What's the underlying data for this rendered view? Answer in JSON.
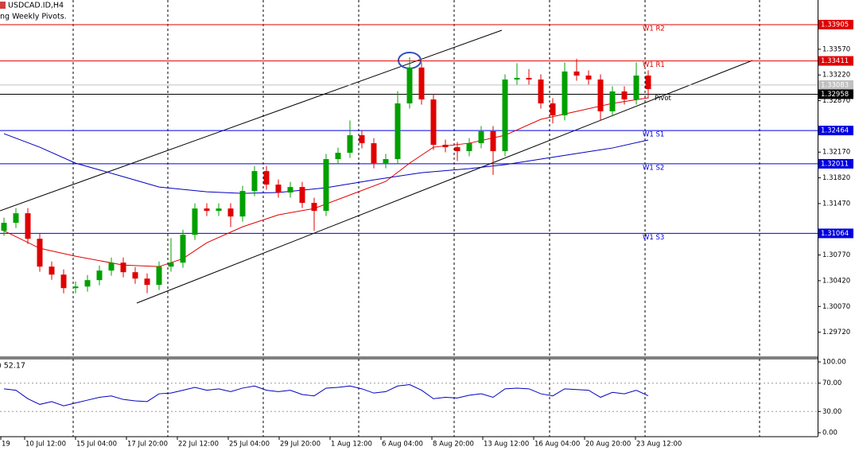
{
  "chart_data": {
    "type": "candlestick",
    "title": "USDCAD.ID,H4",
    "subtitle": "ng Weekly Pivots.",
    "up_color": "#00a000",
    "down_color": "#e00000",
    "x_labels": [
      "19",
      "10 Jul 12:00",
      "15 Jul 04:00",
      "17 Jul 20:00",
      "22 Jul 12:00",
      "25 Jul 04:00",
      "29 Jul 20:00",
      "1 Aug 12:00",
      "6 Aug 04:00",
      "8 Aug 20:00",
      "13 Aug 12:00",
      "16 Aug 04:00",
      "20 Aug 20:00",
      "23 Aug 12:00"
    ],
    "open": [
      1.311,
      1.31208,
      1.31338,
      1.30991,
      1.30612,
      1.30503,
      1.30319,
      1.30341,
      1.30428,
      1.30558,
      1.30666,
      1.30536,
      1.30449,
      1.30363,
      1.30612,
      1.30666,
      1.31045,
      1.31403,
      1.3137,
      1.31403,
      1.31294,
      1.31641,
      1.31912,
      1.31728,
      1.3162,
      1.31695,
      1.31479,
      1.3137,
      1.32075,
      1.32161,
      1.324,
      1.32291,
      1.3202,
      1.32075,
      1.32833,
      1.33321,
      1.32887,
      1.3227,
      1.32237,
      1.32183,
      1.32291,
      1.32454,
      1.32183,
      1.33158,
      1.3318,
      1.33158,
      1.32833,
      1.32671,
      1.33267,
      1.33212,
      1.33158,
      1.32725,
      1.32996,
      1.32887,
      1.33212
    ],
    "high": [
      1.31278,
      1.31408,
      1.31408,
      1.31061,
      1.30682,
      1.30573,
      1.30411,
      1.30498,
      1.30628,
      1.30736,
      1.30736,
      1.30606,
      1.30519,
      1.30682,
      1.31,
      1.31115,
      1.31473,
      1.31473,
      1.31473,
      1.31473,
      1.31711,
      1.31982,
      1.31982,
      1.31798,
      1.31765,
      1.31765,
      1.31549,
      1.32145,
      1.32231,
      1.326,
      1.3247,
      1.32361,
      1.32145,
      1.33,
      1.3346,
      1.33391,
      1.32957,
      1.3234,
      1.32307,
      1.32361,
      1.32524,
      1.32524,
      1.33228,
      1.3338,
      1.333,
      1.33228,
      1.32903,
      1.3339,
      1.3344,
      1.33282,
      1.33228,
      1.33066,
      1.33066,
      1.3339,
      1.33282
    ],
    "low": [
      1.3103,
      1.31138,
      1.30921,
      1.30542,
      1.30433,
      1.30249,
      1.30249,
      1.30271,
      1.30358,
      1.30488,
      1.30466,
      1.30379,
      1.3025,
      1.30293,
      1.30542,
      1.30596,
      1.30975,
      1.313,
      1.313,
      1.3115,
      1.31224,
      1.31571,
      1.31658,
      1.3155,
      1.3155,
      1.31409,
      1.311,
      1.313,
      1.32005,
      1.32091,
      1.32221,
      1.3195,
      1.3195,
      1.32005,
      1.32763,
      1.32817,
      1.322,
      1.32167,
      1.3205,
      1.32113,
      1.32221,
      1.3186,
      1.32113,
      1.33088,
      1.33088,
      1.32763,
      1.3256,
      1.32601,
      1.33142,
      1.33088,
      1.326,
      1.32655,
      1.32817,
      1.32817,
      1.329
    ],
    "close": [
      1.31208,
      1.31338,
      1.30991,
      1.30612,
      1.30503,
      1.30319,
      1.30341,
      1.30428,
      1.30558,
      1.30666,
      1.30536,
      1.30449,
      1.30363,
      1.30612,
      1.30666,
      1.31045,
      1.31403,
      1.3137,
      1.31403,
      1.31294,
      1.31641,
      1.31912,
      1.31728,
      1.3162,
      1.31695,
      1.31479,
      1.3137,
      1.32075,
      1.32161,
      1.324,
      1.32291,
      1.3202,
      1.32075,
      1.32833,
      1.33321,
      1.32887,
      1.3227,
      1.32237,
      1.32183,
      1.32291,
      1.32454,
      1.32183,
      1.33158,
      1.3318,
      1.33158,
      1.32833,
      1.32671,
      1.33267,
      1.33212,
      1.33158,
      1.32725,
      1.32996,
      1.32887,
      1.33212,
      1.33028
    ],
    "ylim": [
      1.2938,
      1.3424
    ],
    "yticks": [
      {
        "value": 1.3357,
        "label": "1.33570"
      },
      {
        "value": 1.3322,
        "label": "1.33220"
      },
      {
        "value": 1.3287,
        "label": "1.32870"
      },
      {
        "value": 1.3217,
        "label": "1.32170"
      },
      {
        "value": 1.3182,
        "label": "1.31820"
      },
      {
        "value": 1.3147,
        "label": "1.31470"
      },
      {
        "value": 1.3077,
        "label": "1.30770"
      },
      {
        "value": 1.3042,
        "label": "1.30420"
      },
      {
        "value": 1.3007,
        "label": "1.30070"
      },
      {
        "value": 1.2972,
        "label": "1.29720"
      }
    ],
    "moving_averages": [
      {
        "color": "#e00000",
        "x": [
          0,
          3,
          6,
          10,
          13,
          15,
          17,
          20,
          23,
          26,
          29,
          32,
          34,
          36,
          39,
          42,
          45,
          48,
          51,
          54
        ],
        "values": [
          1.31099,
          1.30861,
          1.30753,
          1.30633,
          1.30612,
          1.3072,
          1.30937,
          1.31154,
          1.31316,
          1.31403,
          1.31587,
          1.31771,
          1.3202,
          1.32237,
          1.32291,
          1.324,
          1.32616,
          1.32725,
          1.32833,
          1.32909
        ]
      },
      {
        "color": "#0000c0",
        "x": [
          0,
          3,
          6,
          10,
          13,
          17,
          20,
          23,
          27,
          31,
          35,
          39,
          42,
          45,
          48,
          51,
          54
        ],
        "values": [
          1.32421,
          1.32237,
          1.3202,
          1.31836,
          1.31695,
          1.3163,
          1.31609,
          1.3162,
          1.31685,
          1.31793,
          1.3189,
          1.31945,
          1.31999,
          1.32075,
          1.32151,
          1.32226,
          1.32335
        ]
      }
    ],
    "pivots": [
      {
        "name": "W1 R2",
        "value": 1.33905,
        "color": "#e00000"
      },
      {
        "name": "W1 R1",
        "value": 1.33411,
        "color": "#e00000"
      },
      {
        "name": "Pivot",
        "value": 1.32958,
        "color": "#000000"
      },
      {
        "name": "W1 S1",
        "value": 1.32464,
        "color": "#0000e0"
      },
      {
        "name": "W1 S2",
        "value": 1.32011,
        "color": "#0000e0"
      },
      {
        "name": "W1 S3",
        "value": 1.31064,
        "color": "#0000e0"
      }
    ],
    "bid_line": {
      "value": 1.33083,
      "color": "#c0c0c0"
    },
    "rsi": {
      "label": ") 52.17",
      "color": "#0000c0",
      "values": [
        62,
        60,
        48,
        40,
        44,
        38,
        42,
        46,
        50,
        52,
        47,
        45,
        44,
        55,
        56,
        60,
        64,
        60,
        62,
        58,
        63,
        66,
        60,
        58,
        60,
        54,
        52,
        63,
        64,
        66,
        62,
        56,
        58,
        66,
        68,
        60,
        48,
        50,
        49,
        53,
        55,
        50,
        62,
        63,
        62,
        55,
        52,
        62,
        61,
        60,
        50,
        57,
        55,
        60,
        52.17
      ],
      "ylim": [
        -5.6,
        104.5
      ],
      "yticks": [
        {
          "value": 100,
          "label": "100.00"
        },
        {
          "value": 70,
          "label": "70.00"
        },
        {
          "value": 30,
          "label": "30.00"
        },
        {
          "value": 0,
          "label": "0.00"
        }
      ],
      "levels": [
        70,
        30
      ]
    }
  }
}
